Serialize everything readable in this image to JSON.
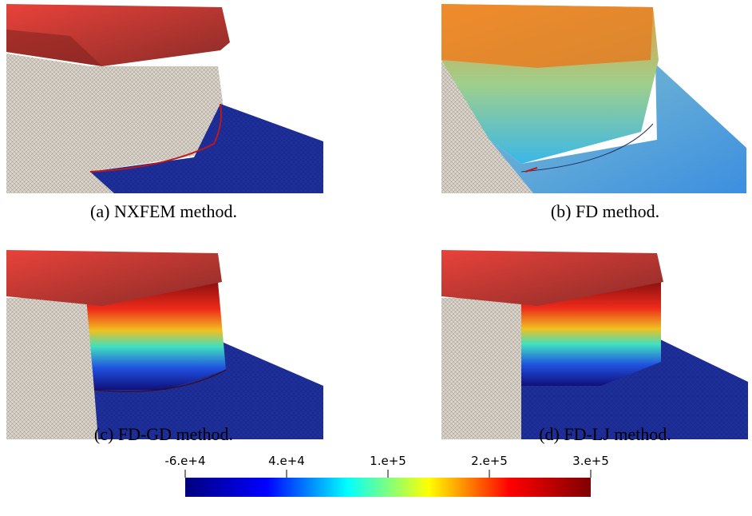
{
  "figure": {
    "panels": [
      {
        "caption": "(a) NXFEM method."
      },
      {
        "caption": "(b) FD method."
      },
      {
        "caption": "(c) FD-GD method."
      },
      {
        "caption": "(d) FD-LJ method."
      }
    ],
    "colorbar": {
      "lim": [
        -60000,
        340000
      ],
      "ticks": [
        {
          "value": -60000,
          "label": "-6.e+4"
        },
        {
          "value": 40000,
          "label": "4.e+4"
        },
        {
          "value": 140000,
          "label": "1.e+5"
        },
        {
          "value": 240000,
          "label": "2.e+5"
        },
        {
          "value": 340000,
          "label": "3.e+5"
        }
      ],
      "colors": [
        "#00007f",
        "#0000ff",
        "#00ffff",
        "#ffff00",
        "#ff0000",
        "#7f0000"
      ]
    }
  }
}
